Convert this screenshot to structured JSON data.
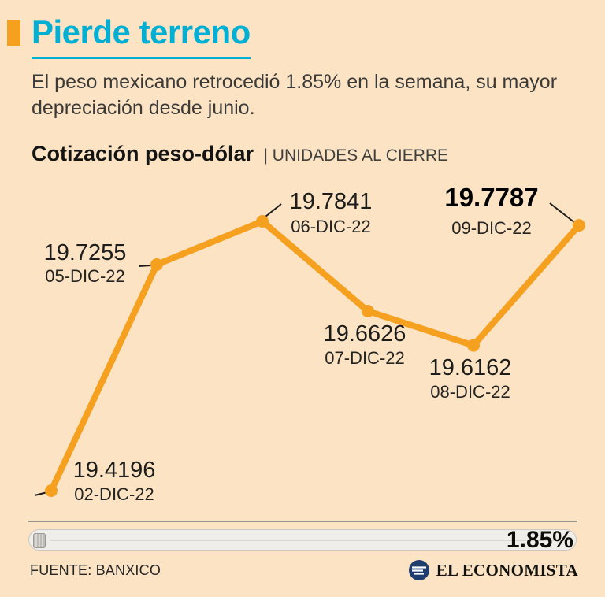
{
  "colors": {
    "background": "#fce3c3",
    "title_cyan": "#00afd4",
    "accent_orange": "#f5a01f",
    "text_dark": "#1d1d1b"
  },
  "header": {
    "title": "Pierde terreno",
    "subtitle": "El peso mexicano retrocedió 1.85% en la semana, su mayor depreciación desde junio."
  },
  "chart_heading": {
    "title": "Cotización peso-dólar",
    "units": "| UNIDADES AL CIERRE"
  },
  "chart_data": {
    "type": "line",
    "title": "Cotización peso-dólar",
    "subtitle": "UNIDADES AL CIERRE",
    "categories": [
      "02-DIC-22",
      "05-DIC-22",
      "06-DIC-22",
      "07-DIC-22",
      "08-DIC-22",
      "09-DIC-22"
    ],
    "values": [
      19.4196,
      19.7255,
      19.7841,
      19.6626,
      19.6162,
      19.7787
    ],
    "value_labels": [
      "19.4196",
      "19.7255",
      "19.7841",
      "19.6626",
      "19.6162",
      "19.7787"
    ],
    "highlight_index": 5,
    "line_color": "#f5a01f",
    "point_color": "#f5a01f",
    "ylim": [
      19.4,
      19.8
    ],
    "grid": false,
    "legend": false,
    "weekly_change_pct": "1.85%"
  },
  "footer": {
    "change_pct": "1.85%",
    "source": "FUENTE: BANXICO",
    "brand": "EL ECONOMISTA"
  }
}
